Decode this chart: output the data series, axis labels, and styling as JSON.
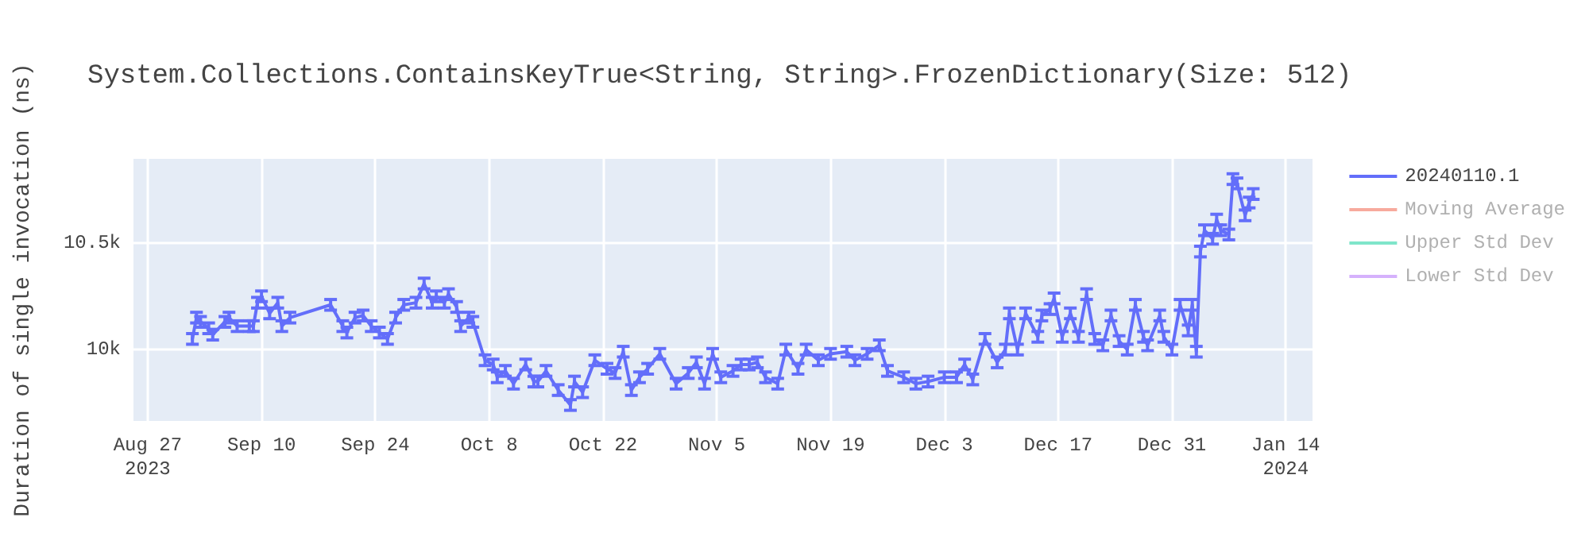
{
  "chart_data": {
    "type": "line",
    "title": "System.Collections.ContainsKeyTrue<String, String>.FrozenDictionary(Size: 512)",
    "ylabel": "Duration of single invocation (ns)",
    "x": [
      "2023-09-01T12:00",
      "2023-09-02",
      "2023-09-02T12:00",
      "2023-09-03T12:00",
      "2023-09-04",
      "2023-09-05T12:00",
      "2023-09-06",
      "2023-09-07",
      "2023-09-08T12:00",
      "2023-09-09",
      "2023-09-09T12:00",
      "2023-09-10",
      "2023-09-11",
      "2023-09-12",
      "2023-09-12T12:00",
      "2023-09-13T12:00",
      "2023-09-18T12:00",
      "2023-09-20",
      "2023-09-20T12:00",
      "2023-09-21T12:00",
      "2023-09-22T12:00",
      "2023-09-23T12:00",
      "2023-09-24T12:00",
      "2023-09-25T12:00",
      "2023-09-26T12:00",
      "2023-09-27T12:00",
      "2023-09-29",
      "2023-09-30",
      "2023-10-01",
      "2023-10-01T12:00",
      "2023-10-02T12:00",
      "2023-10-03",
      "2023-10-04",
      "2023-10-04T12:00",
      "2023-10-05T12:00",
      "2023-10-06",
      "2023-10-07T12:00",
      "2023-10-08T12:00",
      "2023-10-09",
      "2023-10-10",
      "2023-10-11",
      "2023-10-12T12:00",
      "2023-10-13T12:00",
      "2023-10-14",
      "2023-10-15",
      "2023-10-16T12:00",
      "2023-10-18",
      "2023-10-18T12:00",
      "2023-10-19T12:00",
      "2023-10-21",
      "2023-10-22T12:00",
      "2023-10-23T12:00",
      "2023-10-24T12:00",
      "2023-10-25T12:00",
      "2023-10-26T12:00",
      "2023-10-27T12:00",
      "2023-10-29",
      "2023-10-31",
      "2023-11-01T12:00",
      "2023-11-02T12:00",
      "2023-11-03T12:00",
      "2023-11-04T12:00",
      "2023-11-05T12:00",
      "2023-11-07",
      "2023-11-08",
      "2023-11-09",
      "2023-11-10",
      "2023-11-11",
      "2023-11-12T12:00",
      "2023-11-13T12:00",
      "2023-11-15",
      "2023-11-16",
      "2023-11-17T12:00",
      "2023-11-19",
      "2023-11-21",
      "2023-11-22",
      "2023-11-23T12:00",
      "2023-11-25",
      "2023-11-26",
      "2023-11-28",
      "2023-11-29T12:00",
      "2023-12-01",
      "2023-12-03",
      "2023-12-04T12:00",
      "2023-12-05T12:00",
      "2023-12-06T12:00",
      "2023-12-08",
      "2023-12-09T12:00",
      "2023-12-10T12:00",
      "2023-12-11",
      "2023-12-12",
      "2023-12-13",
      "2023-12-14T12:00",
      "2023-12-15",
      "2023-12-16",
      "2023-12-16T12:00",
      "2023-12-17T12:00",
      "2023-12-18T12:00",
      "2023-12-19T12:00",
      "2023-12-20T12:00",
      "2023-12-21T12:00",
      "2023-12-22T12:00",
      "2023-12-23T12:00",
      "2023-12-24T12:00",
      "2023-12-25T12:00",
      "2023-12-26T12:00",
      "2023-12-27T12:00",
      "2023-12-28",
      "2023-12-29T12:00",
      "2023-12-30",
      "2023-12-31",
      "2024-01-01",
      "2024-01-02",
      "2024-01-02T12:00",
      "2024-01-03",
      "2024-01-03T12:00",
      "2024-01-04",
      "2024-01-05",
      "2024-01-05T12:00",
      "2024-01-06",
      "2024-01-07",
      "2024-01-07T12:00",
      "2024-01-08",
      "2024-01-09",
      "2024-01-09T12:00",
      "2024-01-10"
    ],
    "series": [
      {
        "name": "20240110.1",
        "color": "#636efa",
        "values": [
          10050,
          10150,
          10130,
          10100,
          10070,
          10130,
          10150,
          10110,
          10110,
          10110,
          10220,
          10250,
          10170,
          10220,
          10110,
          10150,
          10210,
          10110,
          10080,
          10150,
          10160,
          10110,
          10080,
          10050,
          10150,
          10210,
          10220,
          10310,
          10220,
          10250,
          10220,
          10260,
          10200,
          10110,
          10150,
          10130,
          9950,
          9930,
          9870,
          9900,
          9840,
          9930,
          9850,
          9850,
          9900,
          9810,
          9740,
          9850,
          9800,
          9950,
          9910,
          9890,
          9990,
          9810,
          9870,
          9910,
          9980,
          9840,
          9890,
          9940,
          9840,
          9980,
          9870,
          9900,
          9930,
          9930,
          9940,
          9870,
          9840,
          10000,
          9910,
          10000,
          9950,
          9980,
          9990,
          9950,
          9980,
          10020,
          9900,
          9870,
          9840,
          9850,
          9870,
          9870,
          9930,
          9860,
          10050,
          9940,
          10000,
          10170,
          10000,
          10170,
          10060,
          10160,
          10190,
          10240,
          10060,
          10170,
          10060,
          10260,
          10050,
          10020,
          10160,
          10040,
          10000,
          10210,
          10060,
          10020,
          10160,
          10060,
          10000,
          10210,
          10090,
          10210,
          9990,
          10460,
          10560,
          10520,
          10610,
          10560,
          10540,
          10800,
          10780,
          10630,
          10690,
          10730
        ],
        "errors": [
          25,
          25,
          25,
          25,
          25,
          25,
          25,
          25,
          25,
          25,
          25,
          25,
          25,
          25,
          25,
          25,
          25,
          25,
          25,
          25,
          25,
          25,
          25,
          25,
          25,
          25,
          25,
          25,
          25,
          25,
          25,
          25,
          25,
          25,
          25,
          25,
          25,
          25,
          25,
          25,
          25,
          25,
          25,
          25,
          25,
          25,
          25,
          25,
          25,
          25,
          25,
          25,
          25,
          25,
          25,
          25,
          25,
          25,
          25,
          25,
          25,
          25,
          25,
          25,
          25,
          25,
          25,
          25,
          25,
          25,
          25,
          25,
          25,
          25,
          25,
          25,
          25,
          25,
          25,
          25,
          25,
          25,
          25,
          25,
          25,
          25,
          25,
          25,
          25,
          25,
          25,
          25,
          25,
          25,
          25,
          25,
          25,
          25,
          25,
          25,
          25,
          25,
          25,
          25,
          25,
          25,
          25,
          25,
          25,
          25,
          25,
          25,
          25,
          25,
          25,
          25,
          25,
          25,
          25,
          25,
          25,
          25,
          25,
          25,
          25,
          25
        ]
      },
      {
        "name": "Moving Average",
        "color": "#ef553b",
        "values": [
          null,
          null,
          null,
          null,
          null,
          null,
          null,
          null,
          null,
          null,
          null,
          null,
          null,
          null,
          null,
          null,
          null,
          null,
          null,
          null,
          null,
          null,
          null,
          null,
          null,
          null,
          null,
          null,
          null,
          null,
          null,
          null,
          null,
          null,
          null,
          null,
          null,
          null,
          null,
          null,
          null,
          null,
          null,
          null,
          null,
          null,
          null,
          null,
          null,
          null,
          null,
          null,
          null,
          null,
          null,
          null,
          null,
          null,
          null,
          null,
          null,
          null,
          null,
          null,
          null,
          null,
          null,
          null,
          null,
          null,
          null,
          null,
          null,
          null,
          null,
          null,
          null,
          null,
          null,
          null,
          null,
          null,
          null,
          null,
          null,
          null,
          null,
          null,
          null,
          null,
          null,
          null,
          null,
          null,
          null,
          null,
          null,
          null,
          null,
          null,
          null,
          null,
          null,
          null,
          null,
          null,
          null,
          null,
          null,
          null,
          null,
          null,
          null,
          null,
          null,
          null,
          null,
          null,
          null,
          null,
          null,
          null,
          null,
          null,
          null,
          null
        ]
      },
      {
        "name": "Upper Std Dev",
        "color": "#00cc96",
        "values": [
          null,
          null,
          null,
          null,
          null,
          null,
          null,
          null,
          null,
          null,
          null,
          null,
          null,
          null,
          null,
          null,
          null,
          null,
          null,
          null,
          null,
          null,
          null,
          null,
          null,
          null,
          null,
          null,
          null,
          null,
          null,
          null,
          null,
          null,
          null,
          null,
          null,
          null,
          null,
          null,
          null,
          null,
          null,
          null,
          null,
          null,
          null,
          null,
          null,
          null,
          null,
          null,
          null,
          null,
          null,
          null,
          null,
          null,
          null,
          null,
          null,
          null,
          null,
          null,
          null,
          null,
          null,
          null,
          null,
          null,
          null,
          null,
          null,
          null,
          null,
          null,
          null,
          null,
          null,
          null,
          null,
          null,
          null,
          null,
          null,
          null,
          null,
          null,
          null,
          null,
          null,
          null,
          null,
          null,
          null,
          null,
          null,
          null,
          null,
          null,
          null,
          null,
          null,
          null,
          null,
          null,
          null,
          null,
          null,
          null,
          null,
          null,
          null,
          null,
          null,
          null,
          null,
          null,
          null,
          null,
          null,
          null,
          null,
          null,
          null,
          null
        ]
      },
      {
        "name": "Lower Std Dev",
        "color": "#ab63fa",
        "values": [
          null,
          null,
          null,
          null,
          null,
          null,
          null,
          null,
          null,
          null,
          null,
          null,
          null,
          null,
          null,
          null,
          null,
          null,
          null,
          null,
          null,
          null,
          null,
          null,
          null,
          null,
          null,
          null,
          null,
          null,
          null,
          null,
          null,
          null,
          null,
          null,
          null,
          null,
          null,
          null,
          null,
          null,
          null,
          null,
          null,
          null,
          null,
          null,
          null,
          null,
          null,
          null,
          null,
          null,
          null,
          null,
          null,
          null,
          null,
          null,
          null,
          null,
          null,
          null,
          null,
          null,
          null,
          null,
          null,
          null,
          null,
          null,
          null,
          null,
          null,
          null,
          null,
          null,
          null,
          null,
          null,
          null,
          null,
          null,
          null,
          null,
          null,
          null,
          null,
          null,
          null,
          null,
          null,
          null,
          null,
          null,
          null,
          null,
          null,
          null,
          null,
          null,
          null,
          null,
          null,
          null,
          null,
          null,
          null,
          null,
          null,
          null,
          null,
          null,
          null,
          null,
          null,
          null,
          null,
          null,
          null,
          null,
          null,
          null,
          null,
          null
        ]
      }
    ],
    "xlim": [
      "2023-08-25T06:00",
      "2024-01-17T07:00"
    ],
    "xticks": [
      {
        "value": "2023-08-27",
        "label": "Aug 27\n2023"
      },
      {
        "value": "2023-09-10",
        "label": "Sep 10"
      },
      {
        "value": "2023-09-24",
        "label": "Sep 24"
      },
      {
        "value": "2023-10-08",
        "label": "Oct 8"
      },
      {
        "value": "2023-10-22",
        "label": "Oct 22"
      },
      {
        "value": "2023-11-05",
        "label": "Nov 5"
      },
      {
        "value": "2023-11-19",
        "label": "Nov 19"
      },
      {
        "value": "2023-12-03",
        "label": "Dec 3"
      },
      {
        "value": "2023-12-17",
        "label": "Dec 17"
      },
      {
        "value": "2023-12-31",
        "label": "Dec 31"
      },
      {
        "value": "2024-01-14",
        "label": "Jan 14\n2024"
      }
    ],
    "ylim": [
      9665,
      10895
    ],
    "yticks": [
      {
        "value": 10000,
        "label": "10k"
      },
      {
        "value": 10500,
        "label": "10.5k"
      }
    ],
    "grid": true,
    "legend": "right",
    "marker": "none",
    "line_style": "solid"
  }
}
